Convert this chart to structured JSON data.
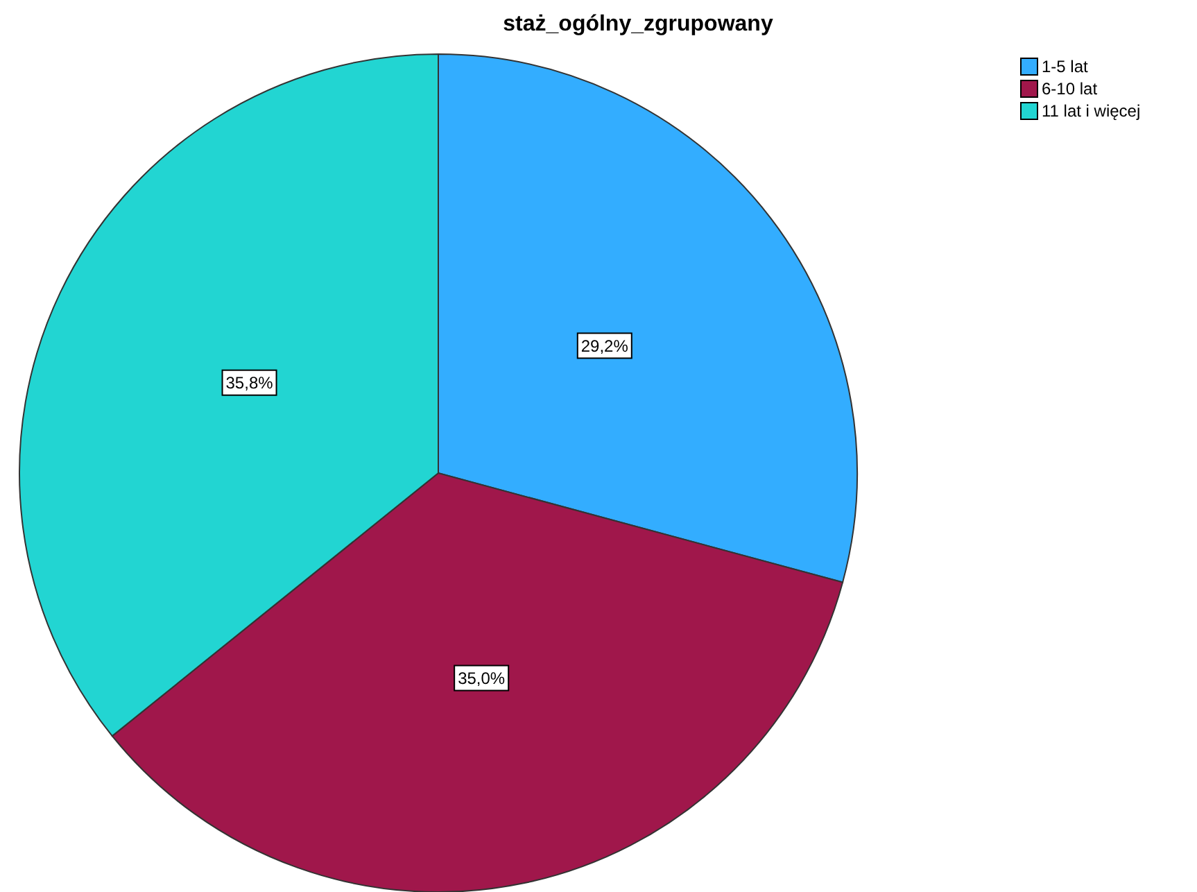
{
  "chart_data": {
    "type": "pie",
    "title": "staż_ogólny_zgrupowany",
    "categories": [
      "1-5 lat",
      "6-10 lat",
      "11 lat i więcej"
    ],
    "values": [
      29.2,
      35.0,
      35.8
    ],
    "colors": [
      "#33adff",
      "#a0174b",
      "#22d5d2"
    ],
    "value_labels": [
      "29,2%",
      "35,0%",
      "35,8%"
    ],
    "legend": "top right"
  }
}
